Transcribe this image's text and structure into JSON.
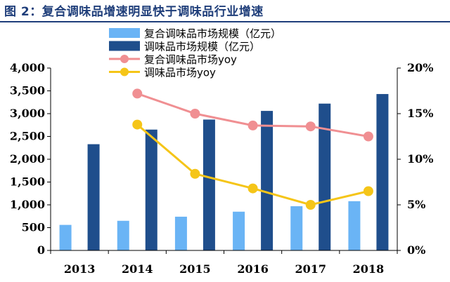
{
  "header": {
    "title": "图 2：复合调味品增速明显快于调味品行业增速"
  },
  "chart_data": {
    "type": "bar+line",
    "categories": [
      "2013",
      "2014",
      "2015",
      "2016",
      "2017",
      "2018"
    ],
    "series": [
      {
        "name": "复合调味品市场规模（亿元）",
        "kind": "bar",
        "axis": "left",
        "color": "#6ab4f5",
        "values": [
          560,
          650,
          740,
          850,
          970,
          1080
        ]
      },
      {
        "name": "调味品市场规模（亿元）",
        "kind": "bar",
        "axis": "left",
        "color": "#1f4e8c",
        "values": [
          2330,
          2650,
          2870,
          3060,
          3220,
          3430
        ]
      },
      {
        "name": "复合调味品市场yoy",
        "kind": "line",
        "axis": "right",
        "color": "#f08f92",
        "values": [
          null,
          17.2,
          15.0,
          13.7,
          13.6,
          12.5
        ]
      },
      {
        "name": "调味品市场yoy",
        "kind": "line",
        "axis": "right",
        "color": "#f5c518",
        "values": [
          null,
          13.8,
          8.4,
          6.8,
          5.0,
          6.5
        ]
      }
    ],
    "y_left": {
      "min": 0,
      "max": 4000,
      "ticks": [
        "0",
        "500",
        "1,000",
        "1,500",
        "2,000",
        "2,500",
        "3,000",
        "3,500",
        "4,000"
      ]
    },
    "y_right": {
      "min": 0,
      "max": 20,
      "ticks": [
        "0%",
        "5%",
        "10%",
        "15%",
        "20%"
      ]
    },
    "legend": {
      "position": "top-left"
    },
    "grid": false
  }
}
